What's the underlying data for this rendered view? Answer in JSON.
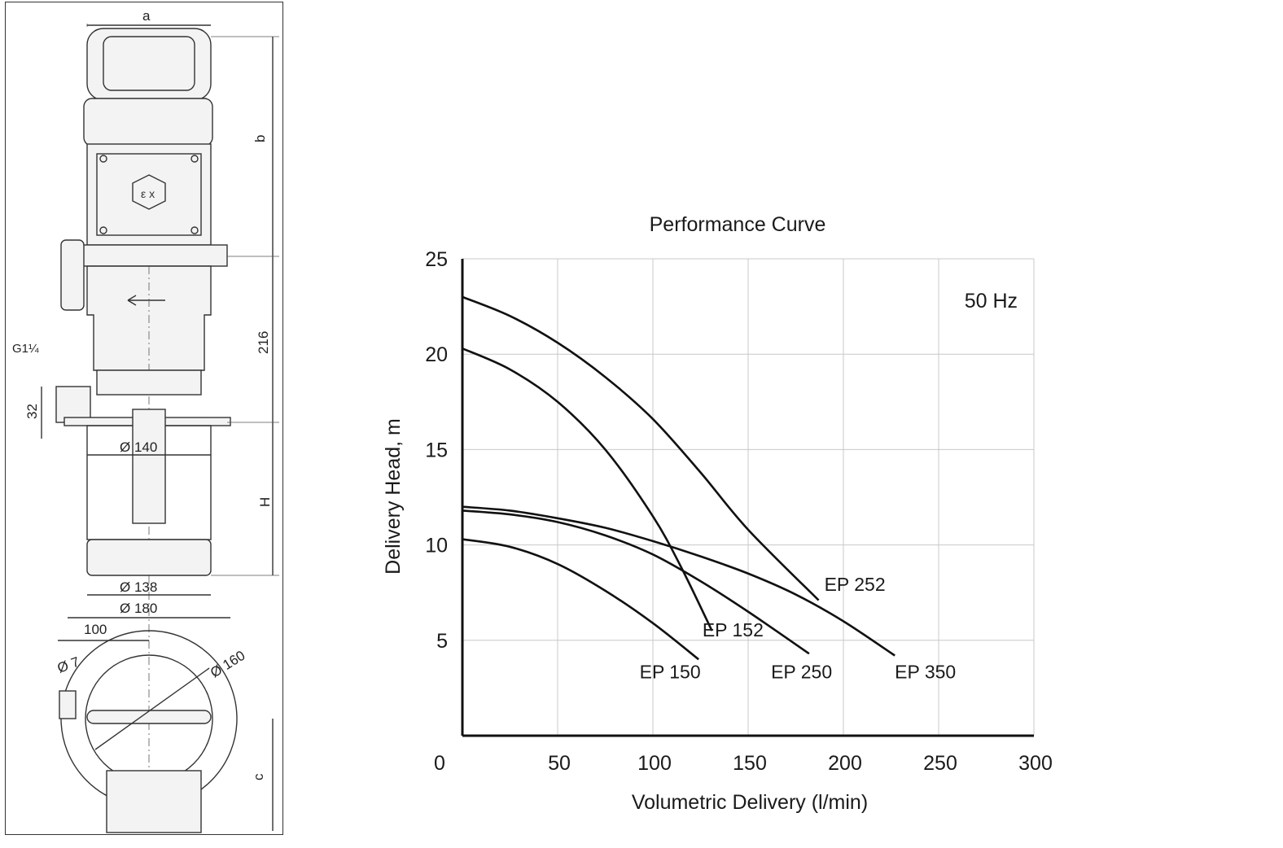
{
  "drawing": {
    "labels": {
      "a": "a",
      "b": "b",
      "c": "c",
      "h": "H",
      "dim_216": "216",
      "dim_32": "32",
      "thread": "G1¼",
      "dia_140": "Ø 140",
      "dia_138": "Ø 138",
      "dia_180": "Ø 180",
      "dim_100": "100",
      "dia_7": "Ø 7",
      "dia_160": "Ø 160"
    }
  },
  "chart_data": {
    "type": "line",
    "title": "Performance Curve",
    "xlabel": "Volumetric Delivery (l/min)",
    "ylabel": "Delivery Head, m",
    "annotation": "50 Hz",
    "xlim": [
      0,
      300
    ],
    "ylim": [
      0,
      25
    ],
    "xticks": [
      0,
      50,
      100,
      150,
      200,
      250,
      300
    ],
    "yticks": [
      5,
      10,
      15,
      20,
      25
    ],
    "grid": true,
    "series": [
      {
        "name": "EP 150",
        "x": [
          0,
          25,
          50,
          75,
          100,
          124
        ],
        "y": [
          10.3,
          9.9,
          9.0,
          7.6,
          5.9,
          4.0
        ]
      },
      {
        "name": "EP 152",
        "x": [
          0,
          25,
          50,
          75,
          100,
          115,
          131
        ],
        "y": [
          20.3,
          19.2,
          17.5,
          15.0,
          11.5,
          8.8,
          5.5
        ]
      },
      {
        "name": "EP 250",
        "x": [
          0,
          25,
          50,
          75,
          100,
          125,
          150,
          182
        ],
        "y": [
          11.8,
          11.6,
          11.2,
          10.5,
          9.5,
          8.1,
          6.5,
          4.3
        ]
      },
      {
        "name": "EP 252",
        "x": [
          0,
          25,
          50,
          75,
          100,
          125,
          150,
          187
        ],
        "y": [
          23.0,
          22.0,
          20.6,
          18.8,
          16.6,
          13.8,
          10.8,
          7.1
        ]
      },
      {
        "name": "EP 350",
        "x": [
          0,
          25,
          50,
          75,
          100,
          125,
          150,
          175,
          200,
          227
        ],
        "y": [
          12.0,
          11.8,
          11.4,
          10.9,
          10.2,
          9.4,
          8.5,
          7.4,
          6.0,
          4.2
        ]
      }
    ],
    "series_labels": [
      {
        "name": "EP 252",
        "at": [
          190,
          7.6
        ]
      },
      {
        "name": "EP 152",
        "at": [
          126,
          5.2
        ]
      },
      {
        "name": "EP 150",
        "at": [
          93,
          3.0
        ]
      },
      {
        "name": "EP 250",
        "at": [
          162,
          3.0
        ]
      },
      {
        "name": "EP 350",
        "at": [
          227,
          3.0
        ]
      }
    ]
  }
}
